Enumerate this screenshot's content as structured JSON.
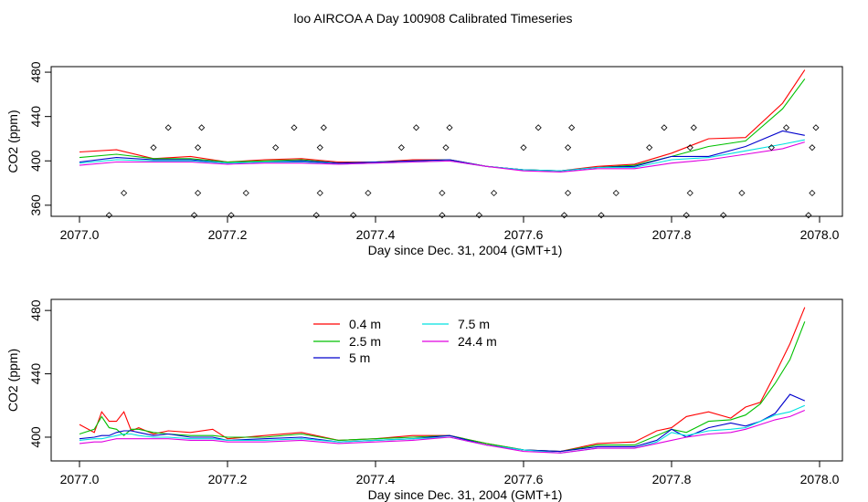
{
  "title": "loo AIRCOA A  Day 100908  Calibrated Timeseries",
  "colors": {
    "0.4 m": "#ff0000",
    "2.5 m": "#00c000",
    "5 m": "#0000cc",
    "7.5 m": "#00e0e0",
    "24.4 m": "#e000e0",
    "axis": "#000000"
  },
  "chart_data": [
    {
      "type": "line",
      "xlabel": "Day since Dec. 31, 2004 (GMT+1)",
      "ylabel": "CO2 (ppm)",
      "xlim": [
        2077.0,
        2078.0
      ],
      "ylim": [
        350,
        485
      ],
      "xticks": [
        "2077.0",
        "2077.2",
        "2077.4",
        "2077.6",
        "2077.8",
        "2078.0"
      ],
      "yticks": [
        "360",
        "400",
        "440",
        "480"
      ],
      "series": [
        {
          "name": "0.4 m",
          "x": [
            2077.0,
            2077.05,
            2077.1,
            2077.15,
            2077.2,
            2077.25,
            2077.3,
            2077.35,
            2077.4,
            2077.45,
            2077.5,
            2077.55,
            2077.6,
            2077.65,
            2077.7,
            2077.75,
            2077.8,
            2077.85,
            2077.9,
            2077.95,
            2077.98
          ],
          "values": [
            408,
            410,
            402,
            404,
            399,
            401,
            402,
            399,
            399,
            401,
            401,
            395,
            392,
            391,
            395,
            397,
            407,
            420,
            421,
            452,
            482
          ]
        },
        {
          "name": "2.5 m",
          "x": [
            2077.0,
            2077.05,
            2077.1,
            2077.15,
            2077.2,
            2077.25,
            2077.3,
            2077.35,
            2077.4,
            2077.45,
            2077.5,
            2077.55,
            2077.6,
            2077.65,
            2077.7,
            2077.75,
            2077.8,
            2077.85,
            2077.9,
            2077.95,
            2077.98
          ],
          "values": [
            403,
            406,
            402,
            402,
            399,
            400,
            401,
            398,
            399,
            400,
            401,
            395,
            392,
            391,
            394,
            396,
            404,
            413,
            418,
            447,
            474
          ]
        },
        {
          "name": "5 m",
          "x": [
            2077.0,
            2077.05,
            2077.1,
            2077.15,
            2077.2,
            2077.25,
            2077.3,
            2077.35,
            2077.4,
            2077.45,
            2077.5,
            2077.55,
            2077.6,
            2077.65,
            2077.7,
            2077.75,
            2077.8,
            2077.85,
            2077.9,
            2077.95,
            2077.98
          ],
          "values": [
            399,
            403,
            401,
            401,
            398,
            399,
            400,
            398,
            399,
            400,
            401,
            395,
            392,
            391,
            394,
            395,
            404,
            404,
            413,
            427,
            423
          ]
        },
        {
          "name": "7.5 m",
          "x": [
            2077.0,
            2077.05,
            2077.1,
            2077.15,
            2077.2,
            2077.25,
            2077.3,
            2077.35,
            2077.4,
            2077.45,
            2077.5,
            2077.55,
            2077.6,
            2077.65,
            2077.7,
            2077.75,
            2077.8,
            2077.85,
            2077.9,
            2077.95,
            2077.98
          ],
          "values": [
            398,
            401,
            400,
            400,
            398,
            399,
            399,
            397,
            398,
            399,
            400,
            395,
            392,
            391,
            394,
            394,
            401,
            403,
            409,
            415,
            419
          ]
        },
        {
          "name": "24.4 m",
          "x": [
            2077.0,
            2077.05,
            2077.1,
            2077.15,
            2077.2,
            2077.25,
            2077.3,
            2077.35,
            2077.4,
            2077.45,
            2077.5,
            2077.55,
            2077.6,
            2077.65,
            2077.7,
            2077.75,
            2077.8,
            2077.85,
            2077.9,
            2077.95,
            2077.98
          ],
          "values": [
            396,
            399,
            399,
            399,
            397,
            398,
            398,
            397,
            398,
            399,
            400,
            395,
            391,
            390,
            393,
            393,
            398,
            401,
            406,
            411,
            417
          ]
        }
      ],
      "flags": {
        "x": [
          2077.04,
          2077.06,
          2077.1,
          2077.12,
          2077.155,
          2077.16,
          2077.16,
          2077.165,
          2077.205,
          2077.225,
          2077.265,
          2077.29,
          2077.32,
          2077.325,
          2077.325,
          2077.33,
          2077.37,
          2077.39,
          2077.435,
          2077.455,
          2077.49,
          2077.49,
          2077.495,
          2077.5,
          2077.54,
          2077.56,
          2077.6,
          2077.62,
          2077.655,
          2077.66,
          2077.66,
          2077.665,
          2077.705,
          2077.725,
          2077.77,
          2077.79,
          2077.82,
          2077.825,
          2077.825,
          2077.83,
          2077.87,
          2077.895,
          2077.935,
          2077.955,
          2077.985,
          2077.99,
          2077.99,
          2077.995
        ],
        "values": [
          351,
          371,
          412,
          430,
          351,
          371,
          412,
          430,
          351,
          371,
          412,
          430,
          351,
          371,
          412,
          430,
          351,
          371,
          412,
          430,
          351,
          371,
          412,
          430,
          351,
          371,
          412,
          430,
          351,
          371,
          412,
          430,
          351,
          371,
          412,
          430,
          351,
          371,
          412,
          430,
          351,
          371,
          412,
          430,
          351,
          371,
          412,
          430
        ]
      }
    },
    {
      "type": "line",
      "xlabel": "Day since Dec. 31, 2004 (GMT+1)",
      "ylabel": "CO2 (ppm)",
      "xlim": [
        2077.0,
        2078.0
      ],
      "ylim": [
        385,
        487
      ],
      "xticks": [
        "2077.0",
        "2077.2",
        "2077.4",
        "2077.6",
        "2077.8",
        "2078.0"
      ],
      "yticks": [
        "400",
        "440",
        "480"
      ],
      "legend": [
        "0.4 m",
        "2.5 m",
        "5 m",
        "7.5 m",
        "24.4 m"
      ],
      "legend_position": "top-left",
      "series": [
        {
          "name": "0.4 m",
          "x": [
            2077.0,
            2077.02,
            2077.03,
            2077.04,
            2077.05,
            2077.06,
            2077.07,
            2077.08,
            2077.1,
            2077.12,
            2077.15,
            2077.18,
            2077.2,
            2077.25,
            2077.3,
            2077.35,
            2077.4,
            2077.45,
            2077.5,
            2077.55,
            2077.6,
            2077.65,
            2077.7,
            2077.75,
            2077.78,
            2077.8,
            2077.82,
            2077.85,
            2077.88,
            2077.9,
            2077.92,
            2077.94,
            2077.96,
            2077.98
          ],
          "values": [
            408,
            403,
            416,
            410,
            410,
            416,
            404,
            406,
            402,
            404,
            403,
            405,
            399,
            401,
            403,
            398,
            399,
            401,
            401,
            396,
            392,
            391,
            396,
            397,
            404,
            406,
            413,
            416,
            412,
            419,
            422,
            440,
            459,
            482
          ]
        },
        {
          "name": "2.5 m",
          "x": [
            2077.0,
            2077.02,
            2077.03,
            2077.04,
            2077.05,
            2077.06,
            2077.07,
            2077.08,
            2077.1,
            2077.12,
            2077.15,
            2077.18,
            2077.2,
            2077.25,
            2077.3,
            2077.35,
            2077.4,
            2077.45,
            2077.5,
            2077.55,
            2077.6,
            2077.65,
            2077.7,
            2077.75,
            2077.78,
            2077.8,
            2077.82,
            2077.85,
            2077.88,
            2077.9,
            2077.92,
            2077.94,
            2077.96,
            2077.98
          ],
          "values": [
            402,
            405,
            413,
            406,
            405,
            401,
            405,
            405,
            403,
            402,
            401,
            401,
            400,
            400,
            402,
            398,
            399,
            400,
            401,
            396,
            392,
            391,
            395,
            395,
            401,
            405,
            403,
            410,
            411,
            414,
            421,
            434,
            449,
            473
          ]
        },
        {
          "name": "5 m",
          "x": [
            2077.0,
            2077.02,
            2077.03,
            2077.04,
            2077.05,
            2077.06,
            2077.07,
            2077.08,
            2077.1,
            2077.12,
            2077.15,
            2077.18,
            2077.2,
            2077.25,
            2077.3,
            2077.35,
            2077.4,
            2077.45,
            2077.5,
            2077.55,
            2077.6,
            2077.65,
            2077.7,
            2077.75,
            2077.78,
            2077.8,
            2077.82,
            2077.85,
            2077.88,
            2077.9,
            2077.92,
            2077.94,
            2077.96,
            2077.98
          ],
          "values": [
            399,
            400,
            401,
            401,
            403,
            404,
            404,
            403,
            401,
            402,
            400,
            400,
            398,
            399,
            400,
            397,
            398,
            399,
            401,
            395,
            392,
            391,
            394,
            394,
            398,
            405,
            400,
            406,
            409,
            407,
            410,
            415,
            427,
            423
          ]
        },
        {
          "name": "7.5 m",
          "x": [
            2077.0,
            2077.02,
            2077.03,
            2077.04,
            2077.05,
            2077.06,
            2077.07,
            2077.08,
            2077.1,
            2077.12,
            2077.15,
            2077.18,
            2077.2,
            2077.25,
            2077.3,
            2077.35,
            2077.4,
            2077.45,
            2077.5,
            2077.55,
            2077.6,
            2077.65,
            2077.7,
            2077.75,
            2077.78,
            2077.8,
            2077.82,
            2077.85,
            2077.88,
            2077.9,
            2077.92,
            2077.94,
            2077.96,
            2077.98
          ],
          "values": [
            398,
            399,
            399,
            400,
            401,
            402,
            402,
            401,
            400,
            400,
            399,
            399,
            398,
            398,
            399,
            397,
            398,
            399,
            400,
            395,
            392,
            390,
            393,
            393,
            397,
            403,
            401,
            404,
            405,
            406,
            410,
            414,
            416,
            420
          ]
        },
        {
          "name": "24.4 m",
          "x": [
            2077.0,
            2077.02,
            2077.03,
            2077.04,
            2077.05,
            2077.06,
            2077.07,
            2077.08,
            2077.1,
            2077.12,
            2077.15,
            2077.18,
            2077.2,
            2077.25,
            2077.3,
            2077.35,
            2077.4,
            2077.45,
            2077.5,
            2077.55,
            2077.6,
            2077.65,
            2077.7,
            2077.75,
            2077.78,
            2077.8,
            2077.82,
            2077.85,
            2077.88,
            2077.9,
            2077.92,
            2077.94,
            2077.96,
            2077.98
          ],
          "values": [
            396,
            397,
            397,
            398,
            399,
            399,
            399,
            399,
            399,
            399,
            398,
            398,
            397,
            397,
            398,
            396,
            397,
            398,
            400,
            395,
            391,
            390,
            393,
            393,
            396,
            398,
            400,
            402,
            403,
            405,
            408,
            411,
            413,
            417
          ]
        }
      ]
    }
  ]
}
